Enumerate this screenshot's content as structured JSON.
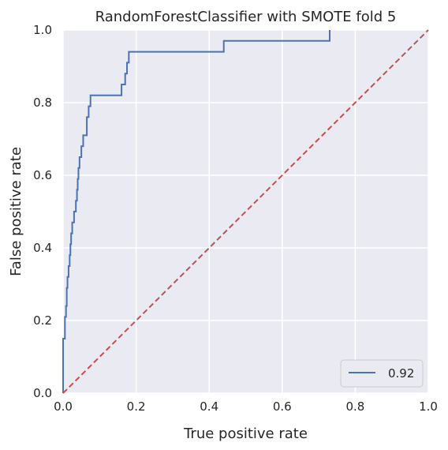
{
  "chart_data": {
    "type": "line",
    "title": "RandomForestClassifier with SMOTE fold 5",
    "xlabel": "True positive rate",
    "ylabel": "False positive rate",
    "xlim": [
      0,
      1
    ],
    "ylim": [
      0,
      1
    ],
    "xticks": [
      "0.0",
      "0.2",
      "0.4",
      "0.6",
      "0.8",
      "1.0"
    ],
    "yticks": [
      "0.0",
      "0.2",
      "0.4",
      "0.6",
      "0.8",
      "1.0"
    ],
    "grid": true,
    "legend_position": "lower-right",
    "colors": {
      "background": "#eaeaf2",
      "grid": "#ffffff",
      "roc": "#4c72b0",
      "diagonal": "#c44e52"
    },
    "series": [
      {
        "name": "0.92",
        "x": [
          0,
          0,
          0.005,
          0.005,
          0.008,
          0.008,
          0.01,
          0.01,
          0.012,
          0.012,
          0.015,
          0.015,
          0.018,
          0.018,
          0.02,
          0.02,
          0.022,
          0.022,
          0.025,
          0.025,
          0.03,
          0.03,
          0.035,
          0.035,
          0.038,
          0.038,
          0.04,
          0.04,
          0.042,
          0.042,
          0.045,
          0.045,
          0.05,
          0.05,
          0.055,
          0.055,
          0.065,
          0.065,
          0.07,
          0.07,
          0.075,
          0.075,
          0.08,
          0.08,
          0.16,
          0.16,
          0.17,
          0.17,
          0.175,
          0.175,
          0.18,
          0.18,
          0.44,
          0.44,
          0.73,
          0.73
        ],
        "y": [
          0,
          0.15,
          0.15,
          0.21,
          0.21,
          0.24,
          0.24,
          0.29,
          0.29,
          0.32,
          0.32,
          0.35,
          0.35,
          0.38,
          0.38,
          0.41,
          0.41,
          0.44,
          0.44,
          0.47,
          0.47,
          0.5,
          0.5,
          0.53,
          0.53,
          0.56,
          0.56,
          0.59,
          0.59,
          0.62,
          0.62,
          0.65,
          0.65,
          0.68,
          0.68,
          0.71,
          0.71,
          0.76,
          0.76,
          0.79,
          0.79,
          0.82,
          0.82,
          0.82,
          0.82,
          0.85,
          0.85,
          0.88,
          0.88,
          0.91,
          0.91,
          0.94,
          0.94,
          0.97,
          0.97,
          1.0
        ]
      },
      {
        "name": "",
        "style": "dashed",
        "x": [
          0,
          1
        ],
        "y": [
          0,
          1
        ]
      }
    ]
  }
}
